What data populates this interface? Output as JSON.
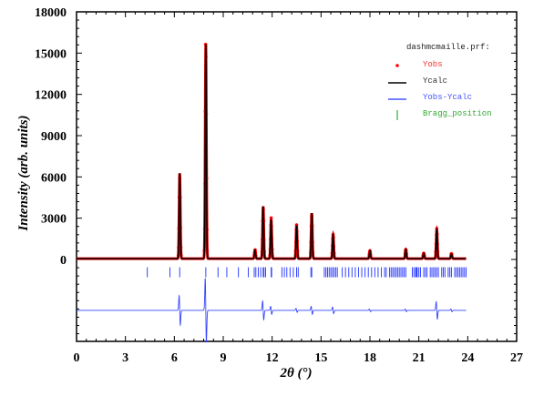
{
  "chart_data": {
    "type": "line",
    "title": "",
    "xlabel": "2θ (°)",
    "ylabel": "Intensity (arb. units)",
    "xlim": [
      0,
      27
    ],
    "ylim": [
      -5000,
      18000
    ],
    "xticks": [
      0,
      3,
      6,
      9,
      12,
      15,
      18,
      21,
      24,
      27
    ],
    "yticks": [
      0,
      3000,
      6000,
      9000,
      12000,
      15000,
      18000
    ],
    "data_range": [
      0,
      23.9
    ],
    "peak_width": 0.035,
    "peaks": [
      {
        "two_theta": 6.33,
        "intensity": 6200
      },
      {
        "two_theta": 7.93,
        "intensity": 15600
      },
      {
        "two_theta": 10.95,
        "intensity": 630
      },
      {
        "two_theta": 11.45,
        "intensity": 3800
      },
      {
        "two_theta": 11.94,
        "intensity": 2850
      },
      {
        "two_theta": 13.5,
        "intensity": 2400
      },
      {
        "two_theta": 14.43,
        "intensity": 3300
      },
      {
        "two_theta": 15.74,
        "intensity": 1750
      },
      {
        "two_theta": 18.0,
        "intensity": 580
      },
      {
        "two_theta": 20.2,
        "intensity": 680
      },
      {
        "two_theta": 21.3,
        "intensity": 400
      },
      {
        "two_theta": 22.1,
        "intensity": 2100
      },
      {
        "two_theta": 23.0,
        "intensity": 350
      }
    ],
    "difference_offset": -3700,
    "difference_spikes": [
      {
        "two_theta": 6.33,
        "amplitude": 1100
      },
      {
        "two_theta": 7.93,
        "amplitude": 2400
      },
      {
        "two_theta": 11.45,
        "amplitude": 700
      },
      {
        "two_theta": 11.94,
        "amplitude": 300
      },
      {
        "two_theta": 13.5,
        "amplitude": 150
      },
      {
        "two_theta": 14.43,
        "amplitude": 300
      },
      {
        "two_theta": 15.74,
        "amplitude": 250
      },
      {
        "two_theta": 18.0,
        "amplitude": 100
      },
      {
        "two_theta": 20.2,
        "amplitude": 100
      },
      {
        "two_theta": 22.1,
        "amplitude": 650
      },
      {
        "two_theta": 23.0,
        "amplitude": 100
      }
    ],
    "bragg_positions": [
      4.34,
      5.73,
      6.33,
      7.93,
      8.68,
      9.22,
      9.93,
      10.54,
      10.9,
      11.0,
      11.15,
      11.3,
      11.45,
      11.5,
      11.6,
      11.94,
      11.97,
      12.6,
      12.75,
      12.9,
      13.1,
      13.3,
      13.5,
      13.6,
      14.38,
      14.43,
      15.2,
      15.3,
      15.4,
      15.5,
      15.6,
      15.7,
      15.8,
      15.9,
      16.0,
      16.3,
      16.5,
      16.7,
      16.9,
      17.1,
      17.3,
      17.5,
      17.7,
      17.9,
      18.1,
      18.3,
      18.5,
      18.7,
      18.9,
      19.0,
      19.2,
      19.3,
      19.4,
      19.5,
      19.6,
      19.7,
      19.8,
      19.9,
      20.0,
      20.1,
      20.2,
      20.6,
      20.7,
      20.8,
      20.85,
      20.9,
      21.0,
      21.1,
      21.3,
      21.4,
      21.5,
      21.7,
      21.8,
      21.9,
      22.0,
      22.1,
      22.2,
      22.4,
      22.5,
      22.6,
      22.8,
      22.9,
      23.0,
      23.2,
      23.3,
      23.4,
      23.5,
      23.6,
      23.7,
      23.8,
      23.9
    ],
    "bragg_level": -500,
    "legend": {
      "title": "dashmcmaille.prf:",
      "placement": "top-right",
      "entries": [
        {
          "label": "Yobs",
          "color": "#ff0000",
          "marker": "dot"
        },
        {
          "label": "Ycalc",
          "color": "#000000",
          "marker": "line"
        },
        {
          "label": "Yobs-Ycalc",
          "color": "#0000ff",
          "marker": "line"
        },
        {
          "label": "Bragg_position",
          "color": "#00a000",
          "marker": "tick"
        }
      ]
    }
  }
}
